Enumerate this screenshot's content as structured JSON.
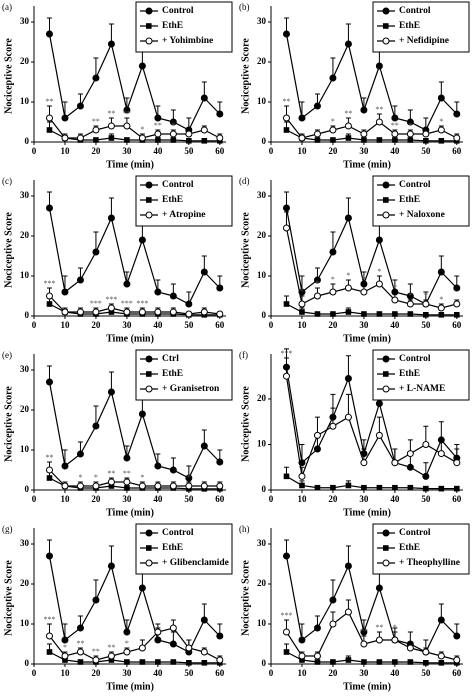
{
  "chart_data": [
    {
      "type": "line",
      "panel": "(a)",
      "xlabel": "Time (min)",
      "ylabel": "Nociceptive Score",
      "x": [
        5,
        10,
        15,
        20,
        25,
        30,
        35,
        40,
        45,
        50,
        55,
        60
      ],
      "xlim": [
        0,
        62
      ],
      "xticks": [
        0,
        10,
        20,
        30,
        40,
        50,
        60
      ],
      "ylim": [
        0,
        33
      ],
      "yticks": [
        0,
        10,
        20,
        30
      ],
      "series": [
        {
          "name": "Control",
          "color": "#000",
          "marker": "circle",
          "values": [
            27,
            6,
            9,
            16,
            24.5,
            8,
            19,
            6,
            5,
            3,
            11,
            7
          ],
          "errors": [
            4,
            4,
            3,
            5,
            5,
            3,
            5,
            3,
            3,
            3,
            4,
            3
          ]
        },
        {
          "name": "EthE",
          "color": "#000",
          "marker": "square",
          "values": [
            3,
            1,
            0.5,
            0.5,
            1,
            0.5,
            0.5,
            0.5,
            0.5,
            0.3,
            0.3,
            0.3
          ],
          "errors": [
            2,
            1,
            0.5,
            0.5,
            1,
            0.5,
            0.5,
            0.5,
            0.5,
            0.3,
            0.3,
            0.3
          ]
        },
        {
          "name": "+ Yohimbine",
          "color": "#000",
          "marker": "open",
          "values": [
            6,
            1,
            1,
            3,
            4,
            4,
            1,
            2,
            2,
            2,
            3,
            1
          ],
          "errors": [
            3,
            1,
            1,
            1,
            2,
            2,
            1,
            1,
            1,
            1,
            1,
            1
          ],
          "significance": [
            "**",
            null,
            null,
            "**",
            "**",
            "**",
            "*",
            "**",
            "*",
            null,
            null,
            null
          ]
        }
      ]
    },
    {
      "type": "line",
      "panel": "(b)",
      "xlabel": "Time (min)",
      "ylabel": "Nociceptive Score",
      "x": [
        5,
        10,
        15,
        20,
        25,
        30,
        35,
        40,
        45,
        50,
        55,
        60
      ],
      "xlim": [
        0,
        62
      ],
      "xticks": [
        0,
        10,
        20,
        30,
        40,
        50,
        60
      ],
      "ylim": [
        0,
        33
      ],
      "yticks": [
        0,
        10,
        20,
        30
      ],
      "series": [
        {
          "name": "Control",
          "color": "#000",
          "marker": "circle",
          "values": [
            27,
            6,
            9,
            16,
            24.5,
            8,
            19,
            6,
            5,
            3,
            11,
            7
          ],
          "errors": [
            4,
            4,
            3,
            5,
            5,
            3,
            5,
            3,
            3,
            3,
            4,
            3
          ]
        },
        {
          "name": "EthE",
          "color": "#000",
          "marker": "square",
          "values": [
            3,
            1,
            0.5,
            0.5,
            1,
            0.5,
            0.5,
            0.5,
            0.5,
            0.3,
            0.3,
            0.3
          ],
          "errors": [
            2,
            1,
            0.5,
            0.5,
            1,
            0.5,
            0.5,
            0.5,
            0.5,
            0.3,
            0.3,
            0.3
          ]
        },
        {
          "name": "+ Nefidipine",
          "color": "#000",
          "marker": "open",
          "values": [
            6,
            1,
            2,
            3,
            4,
            2,
            5,
            2,
            2,
            2,
            3,
            1
          ],
          "errors": [
            3,
            1,
            1,
            1,
            2,
            1,
            2,
            1,
            1,
            1,
            1,
            1
          ],
          "significance": [
            "**",
            null,
            null,
            "*",
            "**",
            null,
            "**",
            "**",
            "*",
            null,
            "*",
            null
          ]
        }
      ]
    },
    {
      "type": "line",
      "panel": "(c)",
      "xlabel": "Time (min)",
      "ylabel": "Nociceptive Score",
      "x": [
        5,
        10,
        15,
        20,
        25,
        30,
        35,
        40,
        45,
        50,
        55,
        60
      ],
      "xlim": [
        0,
        62
      ],
      "xticks": [
        0,
        10,
        20,
        30,
        40,
        50,
        60
      ],
      "ylim": [
        0,
        33
      ],
      "yticks": [
        0,
        10,
        20,
        30
      ],
      "series": [
        {
          "name": "Control",
          "color": "#000",
          "marker": "circle",
          "values": [
            27,
            6,
            9,
            16,
            24.5,
            8,
            19,
            6,
            5,
            3,
            11,
            7
          ],
          "errors": [
            4,
            4,
            3,
            5,
            5,
            3,
            5,
            3,
            3,
            3,
            4,
            3
          ]
        },
        {
          "name": "EthE",
          "color": "#000",
          "marker": "square",
          "values": [
            3,
            1,
            0.5,
            0.5,
            1,
            0.5,
            0.5,
            0.5,
            0.5,
            0.3,
            0.3,
            0.3
          ],
          "errors": [
            2,
            1,
            0.5,
            0.5,
            1,
            0.5,
            0.5,
            0.5,
            0.5,
            0.3,
            0.3,
            0.3
          ]
        },
        {
          "name": "+ Atropine",
          "color": "#000",
          "marker": "open",
          "values": [
            5,
            1,
            1,
            1,
            2,
            1,
            1,
            1,
            1,
            0.5,
            1,
            0.5
          ],
          "errors": [
            2,
            1,
            1,
            1,
            1,
            1,
            1,
            1,
            1,
            0.5,
            1,
            0.5
          ],
          "significance": [
            "***",
            null,
            null,
            "***",
            "***",
            "***",
            "***",
            null,
            null,
            null,
            null,
            null
          ]
        }
      ]
    },
    {
      "type": "line",
      "panel": "(d)",
      "xlabel": "Time (min)",
      "ylabel": "Nociceptive Score",
      "x": [
        5,
        10,
        15,
        20,
        25,
        30,
        35,
        40,
        45,
        50,
        55,
        60
      ],
      "xlim": [
        0,
        62
      ],
      "xticks": [
        0,
        10,
        20,
        30,
        40,
        50,
        60
      ],
      "ylim": [
        0,
        33
      ],
      "yticks": [
        0,
        10,
        20,
        30
      ],
      "series": [
        {
          "name": "Control",
          "color": "#000",
          "marker": "circle",
          "values": [
            27,
            6,
            9,
            16,
            24.5,
            8,
            19,
            6,
            5,
            3,
            11,
            7
          ],
          "errors": [
            4,
            4,
            3,
            5,
            5,
            3,
            5,
            3,
            3,
            3,
            4,
            3
          ]
        },
        {
          "name": "EthE",
          "color": "#000",
          "marker": "square",
          "values": [
            3,
            1,
            0.5,
            0.5,
            1,
            0.5,
            0.5,
            0.5,
            0.5,
            0.3,
            0.3,
            0.3
          ],
          "errors": [
            2,
            1,
            0.5,
            0.5,
            1,
            0.5,
            0.5,
            0.5,
            0.5,
            0.3,
            0.3,
            0.3
          ]
        },
        {
          "name": "+ Naloxone",
          "color": "#000",
          "marker": "open",
          "values": [
            22,
            3,
            5,
            6,
            7,
            6,
            8,
            4,
            3,
            3,
            2,
            3
          ],
          "errors": [
            4,
            2,
            2,
            2,
            2,
            2,
            2,
            2,
            1,
            1,
            1,
            1
          ],
          "significance": [
            null,
            "*",
            "*",
            "*",
            "*",
            "*",
            "*",
            "*",
            "*",
            "*",
            "*",
            null
          ]
        }
      ]
    },
    {
      "type": "line",
      "panel": "(e)",
      "xlabel": "Time (min)",
      "ylabel": "Nociceptive Score",
      "x": [
        5,
        10,
        15,
        20,
        25,
        30,
        35,
        40,
        45,
        50,
        55,
        60
      ],
      "xlim": [
        0,
        62
      ],
      "xticks": [
        0,
        10,
        20,
        30,
        40,
        50,
        60
      ],
      "ylim": [
        0,
        33
      ],
      "yticks": [
        0,
        10,
        20,
        30
      ],
      "series": [
        {
          "name": "Ctrl",
          "color": "#000",
          "marker": "circle",
          "values": [
            27,
            6,
            9,
            16,
            24.5,
            8,
            19,
            6,
            5,
            3,
            11,
            7
          ],
          "errors": [
            4,
            4,
            3,
            5,
            5,
            3,
            5,
            3,
            3,
            3,
            4,
            3
          ]
        },
        {
          "name": "EthE",
          "color": "#000",
          "marker": "square",
          "values": [
            3,
            1,
            0.5,
            0.5,
            1,
            0.5,
            0.5,
            0.5,
            0.5,
            0.3,
            0.3,
            0.3
          ],
          "errors": [
            2,
            1,
            0.5,
            0.5,
            1,
            0.5,
            0.5,
            0.5,
            0.5,
            0.3,
            0.3,
            0.3
          ]
        },
        {
          "name": "+ Granisetron",
          "color": "#000",
          "marker": "open",
          "values": [
            5,
            1,
            1,
            1,
            2,
            2,
            1,
            1,
            1,
            1,
            1,
            1
          ],
          "errors": [
            2,
            1,
            1,
            1,
            1,
            1,
            1,
            1,
            1,
            1,
            1,
            1
          ],
          "significance": [
            "**",
            null,
            "*",
            "*",
            "**",
            "**",
            "*",
            null,
            null,
            "*",
            null,
            null
          ]
        }
      ]
    },
    {
      "type": "line",
      "panel": "(f)",
      "xlabel": "Time (min)",
      "ylabel": "Nociceptive Score",
      "x": [
        5,
        10,
        15,
        20,
        25,
        30,
        35,
        40,
        45,
        50,
        55,
        60
      ],
      "xlim": [
        0,
        62
      ],
      "xticks": [
        0,
        10,
        20,
        30,
        40,
        50,
        60
      ],
      "ylim": [
        0,
        29
      ],
      "yticks": [
        0,
        10,
        20
      ],
      "series": [
        {
          "name": "Control",
          "color": "#000",
          "marker": "circle",
          "values": [
            27,
            6,
            9,
            16,
            24.5,
            8,
            19,
            6,
            5,
            3,
            11,
            7
          ],
          "errors": [
            4,
            4,
            3,
            5,
            5,
            3,
            5,
            3,
            3,
            3,
            4,
            3
          ]
        },
        {
          "name": "EthE",
          "color": "#000",
          "marker": "square",
          "values": [
            3,
            1,
            0.5,
            0.5,
            1,
            0.5,
            0.5,
            0.5,
            0.5,
            0.3,
            0.3,
            0.3
          ],
          "errors": [
            2,
            1,
            0.5,
            0.5,
            1,
            0.5,
            0.5,
            0.5,
            0.5,
            0.3,
            0.3,
            0.3
          ]
        },
        {
          "name": "+ L-NAME",
          "color": "#000",
          "marker": "open",
          "values": [
            25,
            3,
            12,
            14,
            16,
            6,
            12,
            6,
            8,
            10,
            8,
            6
          ],
          "errors": [
            4,
            2,
            4,
            4,
            5,
            3,
            4,
            3,
            3,
            4,
            3,
            3
          ],
          "significance": [
            "***",
            null,
            null,
            null,
            null,
            null,
            null,
            null,
            null,
            null,
            null,
            null
          ]
        }
      ]
    },
    {
      "type": "line",
      "panel": "(g)",
      "xlabel": "Time (min)",
      "ylabel": "Nociceptive Score",
      "x": [
        5,
        10,
        15,
        20,
        25,
        30,
        35,
        40,
        45,
        50,
        55,
        60
      ],
      "xlim": [
        0,
        62
      ],
      "xticks": [
        0,
        10,
        20,
        30,
        40,
        50,
        60
      ],
      "ylim": [
        0,
        33
      ],
      "yticks": [
        0,
        10,
        20,
        30
      ],
      "series": [
        {
          "name": "Control",
          "color": "#000",
          "marker": "circle",
          "values": [
            27,
            6,
            9,
            16,
            24.5,
            8,
            19,
            6,
            5,
            3,
            11,
            7
          ],
          "errors": [
            4,
            4,
            3,
            5,
            5,
            3,
            5,
            3,
            3,
            3,
            4,
            3
          ]
        },
        {
          "name": "EthE",
          "color": "#000",
          "marker": "square",
          "values": [
            3,
            1,
            0.5,
            0.5,
            1,
            0.5,
            0.5,
            0.5,
            0.5,
            0.3,
            0.3,
            0.3
          ],
          "errors": [
            2,
            1,
            0.5,
            0.5,
            1,
            0.5,
            0.5,
            0.5,
            0.5,
            0.3,
            0.3,
            0.3
          ]
        },
        {
          "name": "+ Glibenclamide",
          "color": "#000",
          "marker": "open",
          "values": [
            7,
            2,
            3,
            1,
            2,
            3,
            4,
            8,
            9,
            4,
            3,
            1
          ],
          "errors": [
            3,
            1,
            1,
            1,
            1,
            1,
            2,
            2,
            2,
            2,
            1,
            1
          ],
          "significance": [
            "***",
            "*",
            "**",
            "**",
            "**",
            "*",
            null,
            null,
            null,
            null,
            null,
            null
          ]
        }
      ]
    },
    {
      "type": "line",
      "panel": "(h)",
      "xlabel": "Time (min)",
      "ylabel": "Nociceptive Score",
      "x": [
        5,
        10,
        15,
        20,
        25,
        30,
        35,
        40,
        45,
        50,
        55,
        60
      ],
      "xlim": [
        0,
        62
      ],
      "xticks": [
        0,
        10,
        20,
        30,
        40,
        50,
        60
      ],
      "ylim": [
        0,
        33
      ],
      "yticks": [
        0,
        10,
        20,
        30
      ],
      "series": [
        {
          "name": "Control",
          "color": "#000",
          "marker": "circle",
          "values": [
            27,
            6,
            9,
            16,
            24.5,
            8,
            19,
            6,
            5,
            3,
            11,
            7
          ],
          "errors": [
            4,
            4,
            3,
            5,
            5,
            3,
            5,
            3,
            3,
            3,
            4,
            3
          ]
        },
        {
          "name": "EthE",
          "color": "#000",
          "marker": "square",
          "values": [
            3,
            1,
            0.5,
            0.5,
            1,
            0.5,
            0.5,
            0.5,
            0.5,
            0.3,
            0.3,
            0.3
          ],
          "errors": [
            2,
            1,
            0.5,
            0.5,
            1,
            0.5,
            0.5,
            0.5,
            0.5,
            0.3,
            0.3,
            0.3
          ]
        },
        {
          "name": "+ Theophylline",
          "color": "#000",
          "marker": "open",
          "values": [
            8,
            2,
            2,
            10,
            13,
            5,
            6,
            6,
            4,
            3,
            2,
            1
          ],
          "errors": [
            3,
            1,
            1,
            3,
            3,
            2,
            2,
            2,
            1,
            1,
            1,
            1
          ],
          "significance": [
            "***",
            null,
            null,
            null,
            null,
            "**",
            "**",
            "*",
            null,
            null,
            null,
            null
          ]
        }
      ]
    }
  ]
}
